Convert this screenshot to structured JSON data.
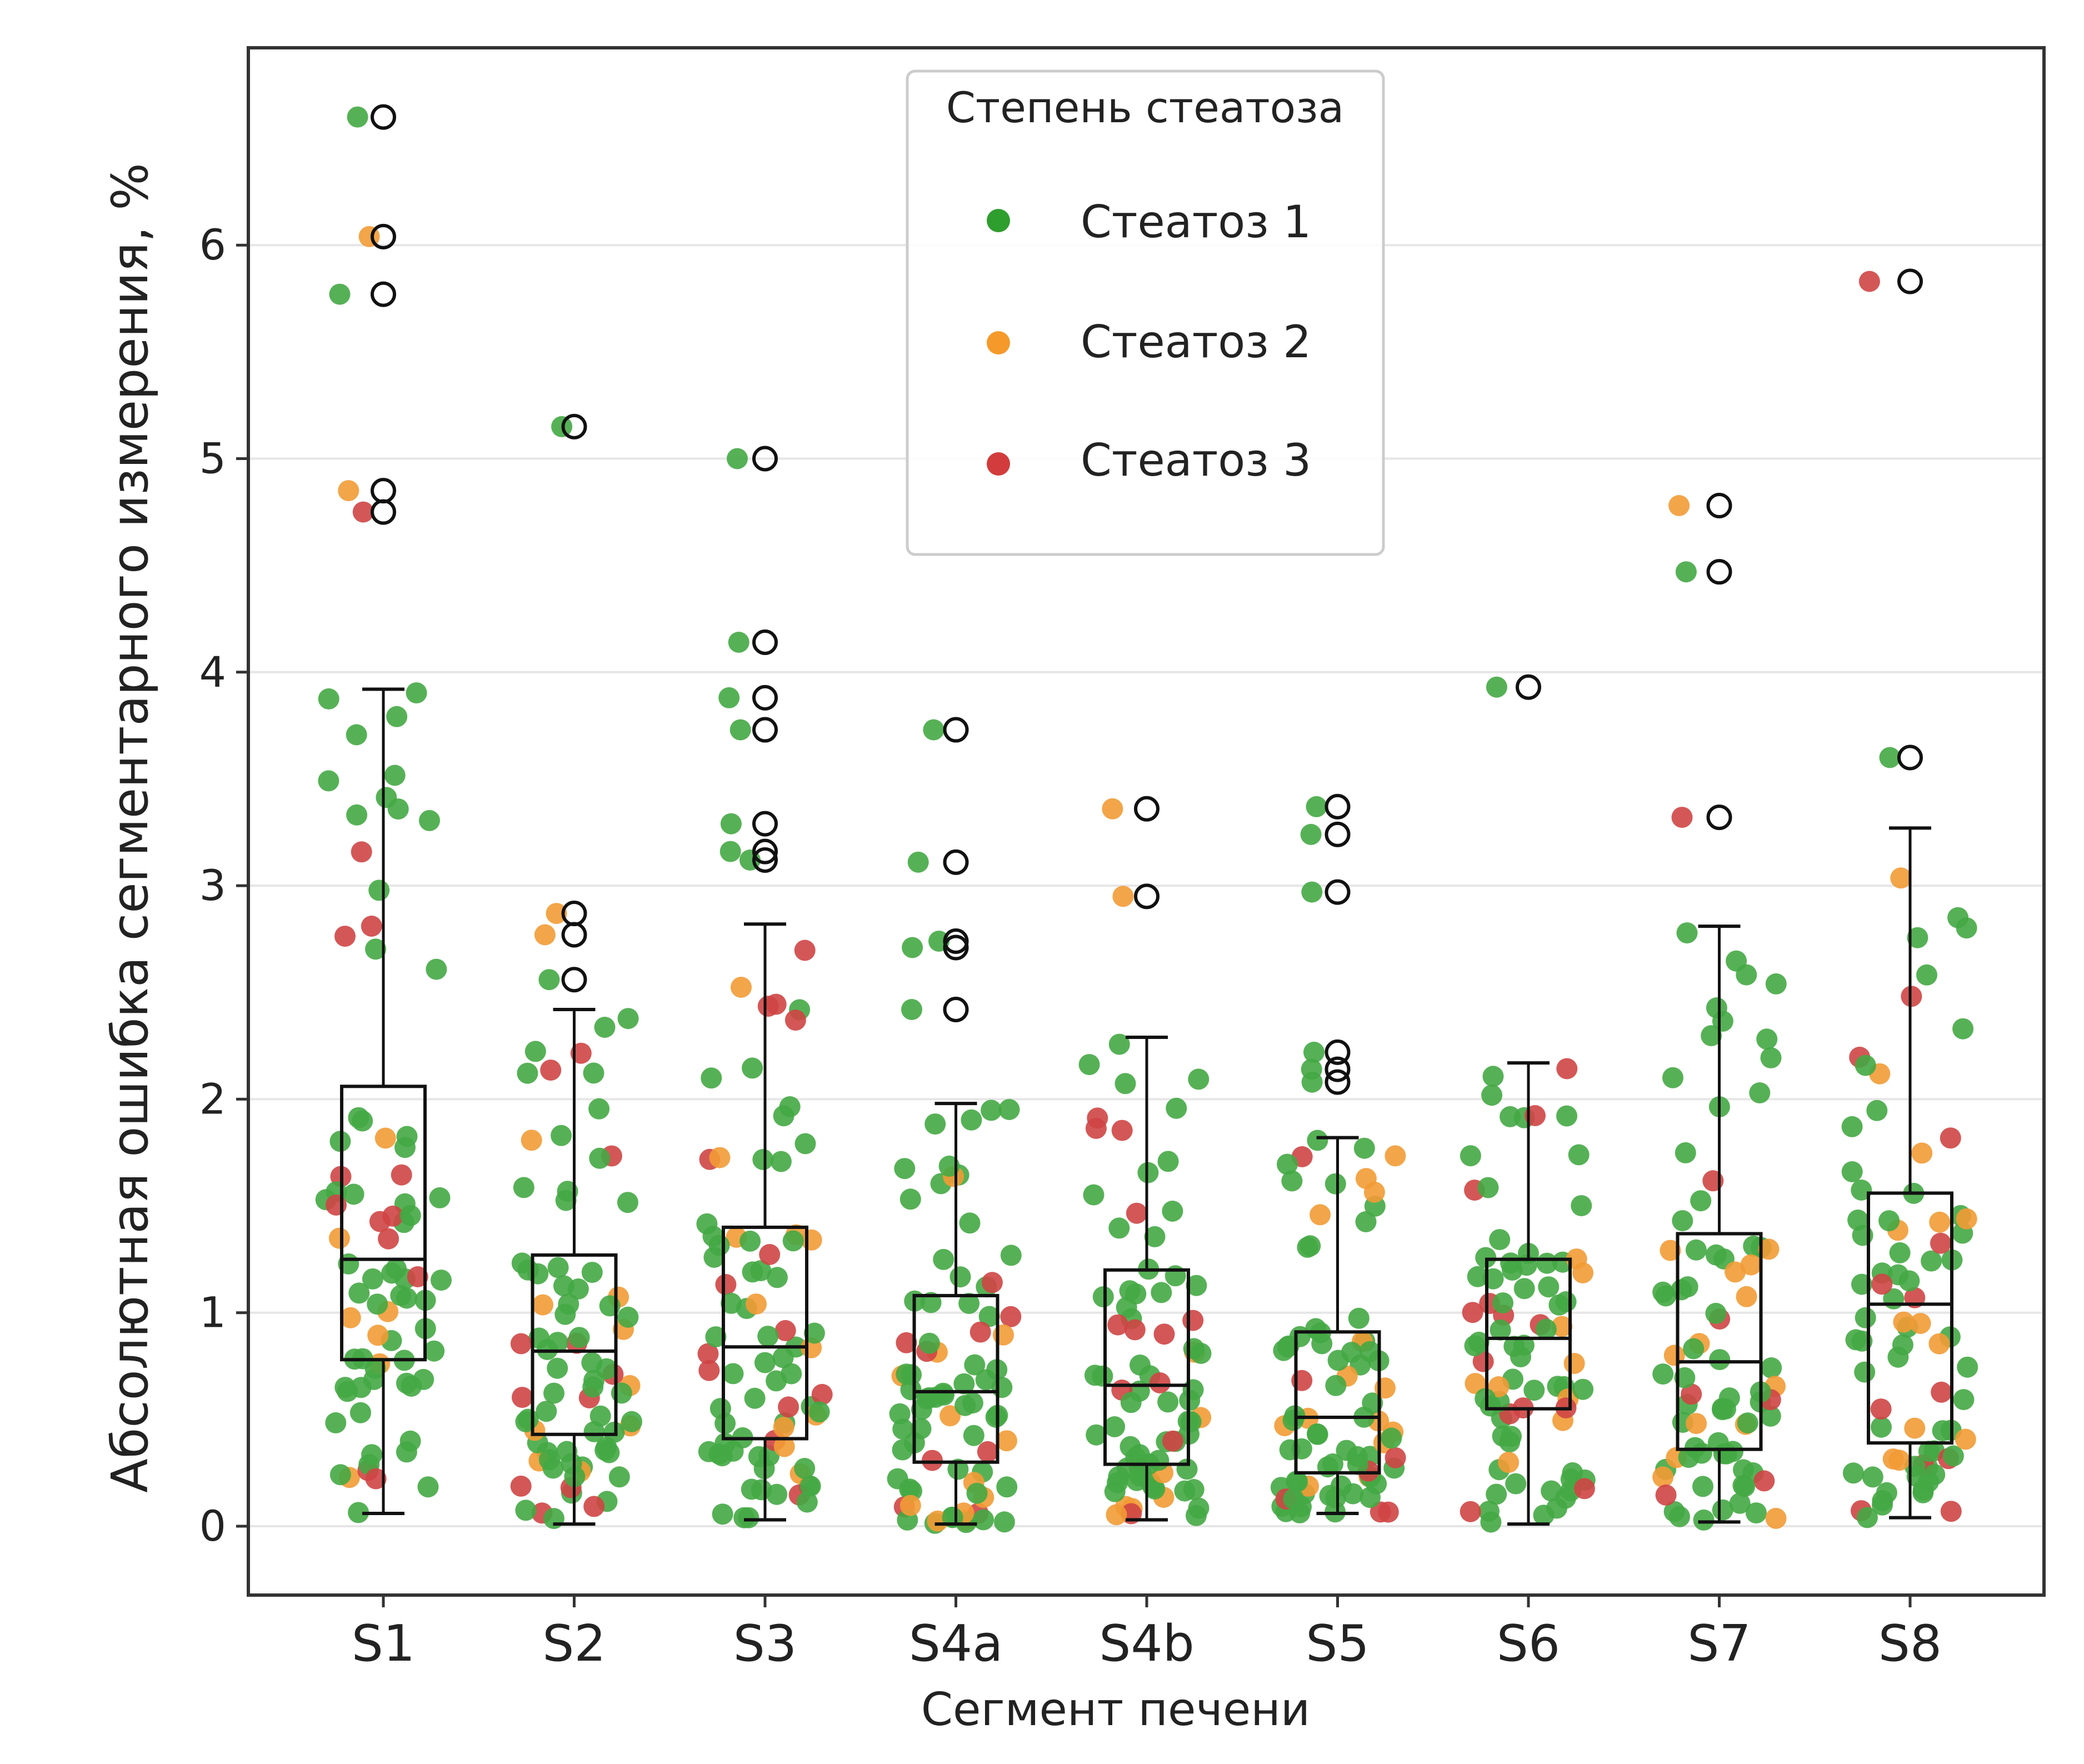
{
  "chart_data": {
    "type": "box",
    "xlabel": "Сегмент печени",
    "ylabel": "Абсолютная ошибка сегментарного измерения, %",
    "ylim": [
      -0.3,
      6.9
    ],
    "yticks": [
      0,
      1,
      2,
      3,
      4,
      5,
      6
    ],
    "grid": "horizontal",
    "categories": [
      "S1",
      "S2",
      "S3",
      "S4a",
      "S4b",
      "S5",
      "S6",
      "S7",
      "S8"
    ],
    "boxes": [
      {
        "q1": 0.78,
        "median": 1.25,
        "q3": 2.06,
        "whisker_low": 0.06,
        "whisker_high": 3.92,
        "outliers": [
          6.6,
          6.04,
          5.77,
          4.85,
          4.75
        ]
      },
      {
        "q1": 0.43,
        "median": 0.82,
        "q3": 1.27,
        "whisker_low": 0.01,
        "whisker_high": 2.42,
        "outliers": [
          5.15,
          2.87,
          2.77,
          2.56
        ]
      },
      {
        "q1": 0.41,
        "median": 0.84,
        "q3": 1.4,
        "whisker_low": 0.03,
        "whisker_high": 2.82,
        "outliers": [
          5.0,
          4.14,
          3.88,
          3.73,
          3.29,
          3.16,
          3.12
        ]
      },
      {
        "q1": 0.3,
        "median": 0.63,
        "q3": 1.08,
        "whisker_low": 0.01,
        "whisker_high": 1.98,
        "outliers": [
          3.73,
          3.11,
          2.74,
          2.71,
          2.42
        ]
      },
      {
        "q1": 0.29,
        "median": 0.66,
        "q3": 1.2,
        "whisker_low": 0.03,
        "whisker_high": 2.29,
        "outliers": [
          3.36,
          2.95
        ]
      },
      {
        "q1": 0.25,
        "median": 0.51,
        "q3": 0.91,
        "whisker_low": 0.06,
        "whisker_high": 1.82,
        "outliers": [
          3.37,
          3.24,
          2.97,
          2.22,
          2.14,
          2.08
        ]
      },
      {
        "q1": 0.55,
        "median": 0.88,
        "q3": 1.25,
        "whisker_low": 0.01,
        "whisker_high": 2.17,
        "outliers": [
          3.93
        ]
      },
      {
        "q1": 0.36,
        "median": 0.77,
        "q3": 1.37,
        "whisker_low": 0.02,
        "whisker_high": 2.81,
        "outliers": [
          4.78,
          4.47,
          3.32
        ]
      },
      {
        "q1": 0.39,
        "median": 1.04,
        "q3": 1.56,
        "whisker_low": 0.04,
        "whisker_high": 3.27,
        "outliers": [
          5.83,
          3.6
        ]
      }
    ],
    "legend": {
      "title": "Степень стеатоза",
      "placement": "top-center",
      "entries": [
        {
          "label": "Стеатоз 1",
          "color": "#2e9e2e"
        },
        {
          "label": "Стеатоз 2",
          "color": "#f59a2a"
        },
        {
          "label": "Стеатоз 3",
          "color": "#d23c3c"
        }
      ]
    },
    "point_colors": {
      "Стеатоз 1": "#44a844",
      "Стеатоз 2": "#f29b35",
      "Стеатоз 3": "#cf4545"
    }
  }
}
